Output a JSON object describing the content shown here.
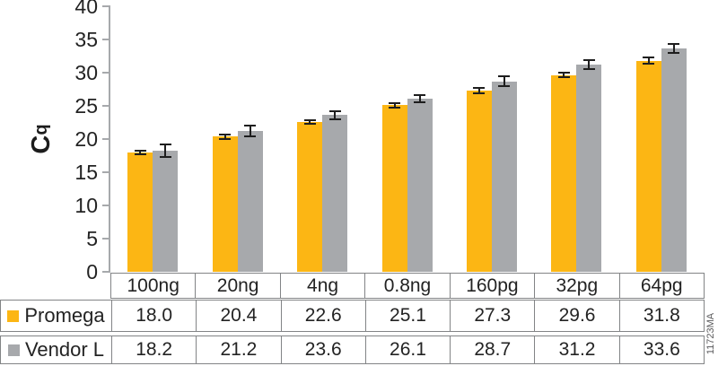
{
  "figure_id": "11723MA",
  "colors": {
    "promega": "#FCB614",
    "vendor": "#A7A9AC",
    "axis": "#A7A9AC",
    "table_border": "#828486",
    "text": "#232323",
    "error_bar": "#1E1E1E",
    "figure_id_text": "#59595B"
  },
  "y_axis": {
    "label_main": "C",
    "label_sub": "q"
  },
  "chart_data": {
    "type": "bar",
    "title": "",
    "xlabel": "",
    "ylabel": "Cq",
    "ylim": [
      0,
      40
    ],
    "yticks": [
      0,
      5,
      10,
      15,
      20,
      25,
      30,
      35,
      40
    ],
    "grid": false,
    "legend_position": "table-left",
    "categories": [
      "100ng",
      "20ng",
      "4ng",
      "0.8ng",
      "160pg",
      "32pg",
      "64pg"
    ],
    "series": [
      {
        "name": "Promega",
        "color_key": "promega",
        "values": [
          18.0,
          20.4,
          22.6,
          25.1,
          27.3,
          29.6,
          31.8
        ],
        "errors": [
          0.15,
          0.2,
          0.15,
          0.2,
          0.25,
          0.2,
          0.3
        ]
      },
      {
        "name": "Vendor L",
        "color_key": "vendor",
        "values": [
          18.2,
          21.2,
          23.6,
          26.1,
          28.7,
          31.2,
          33.6
        ],
        "errors": [
          0.8,
          0.7,
          0.5,
          0.45,
          0.6,
          0.5,
          0.55
        ]
      }
    ]
  }
}
